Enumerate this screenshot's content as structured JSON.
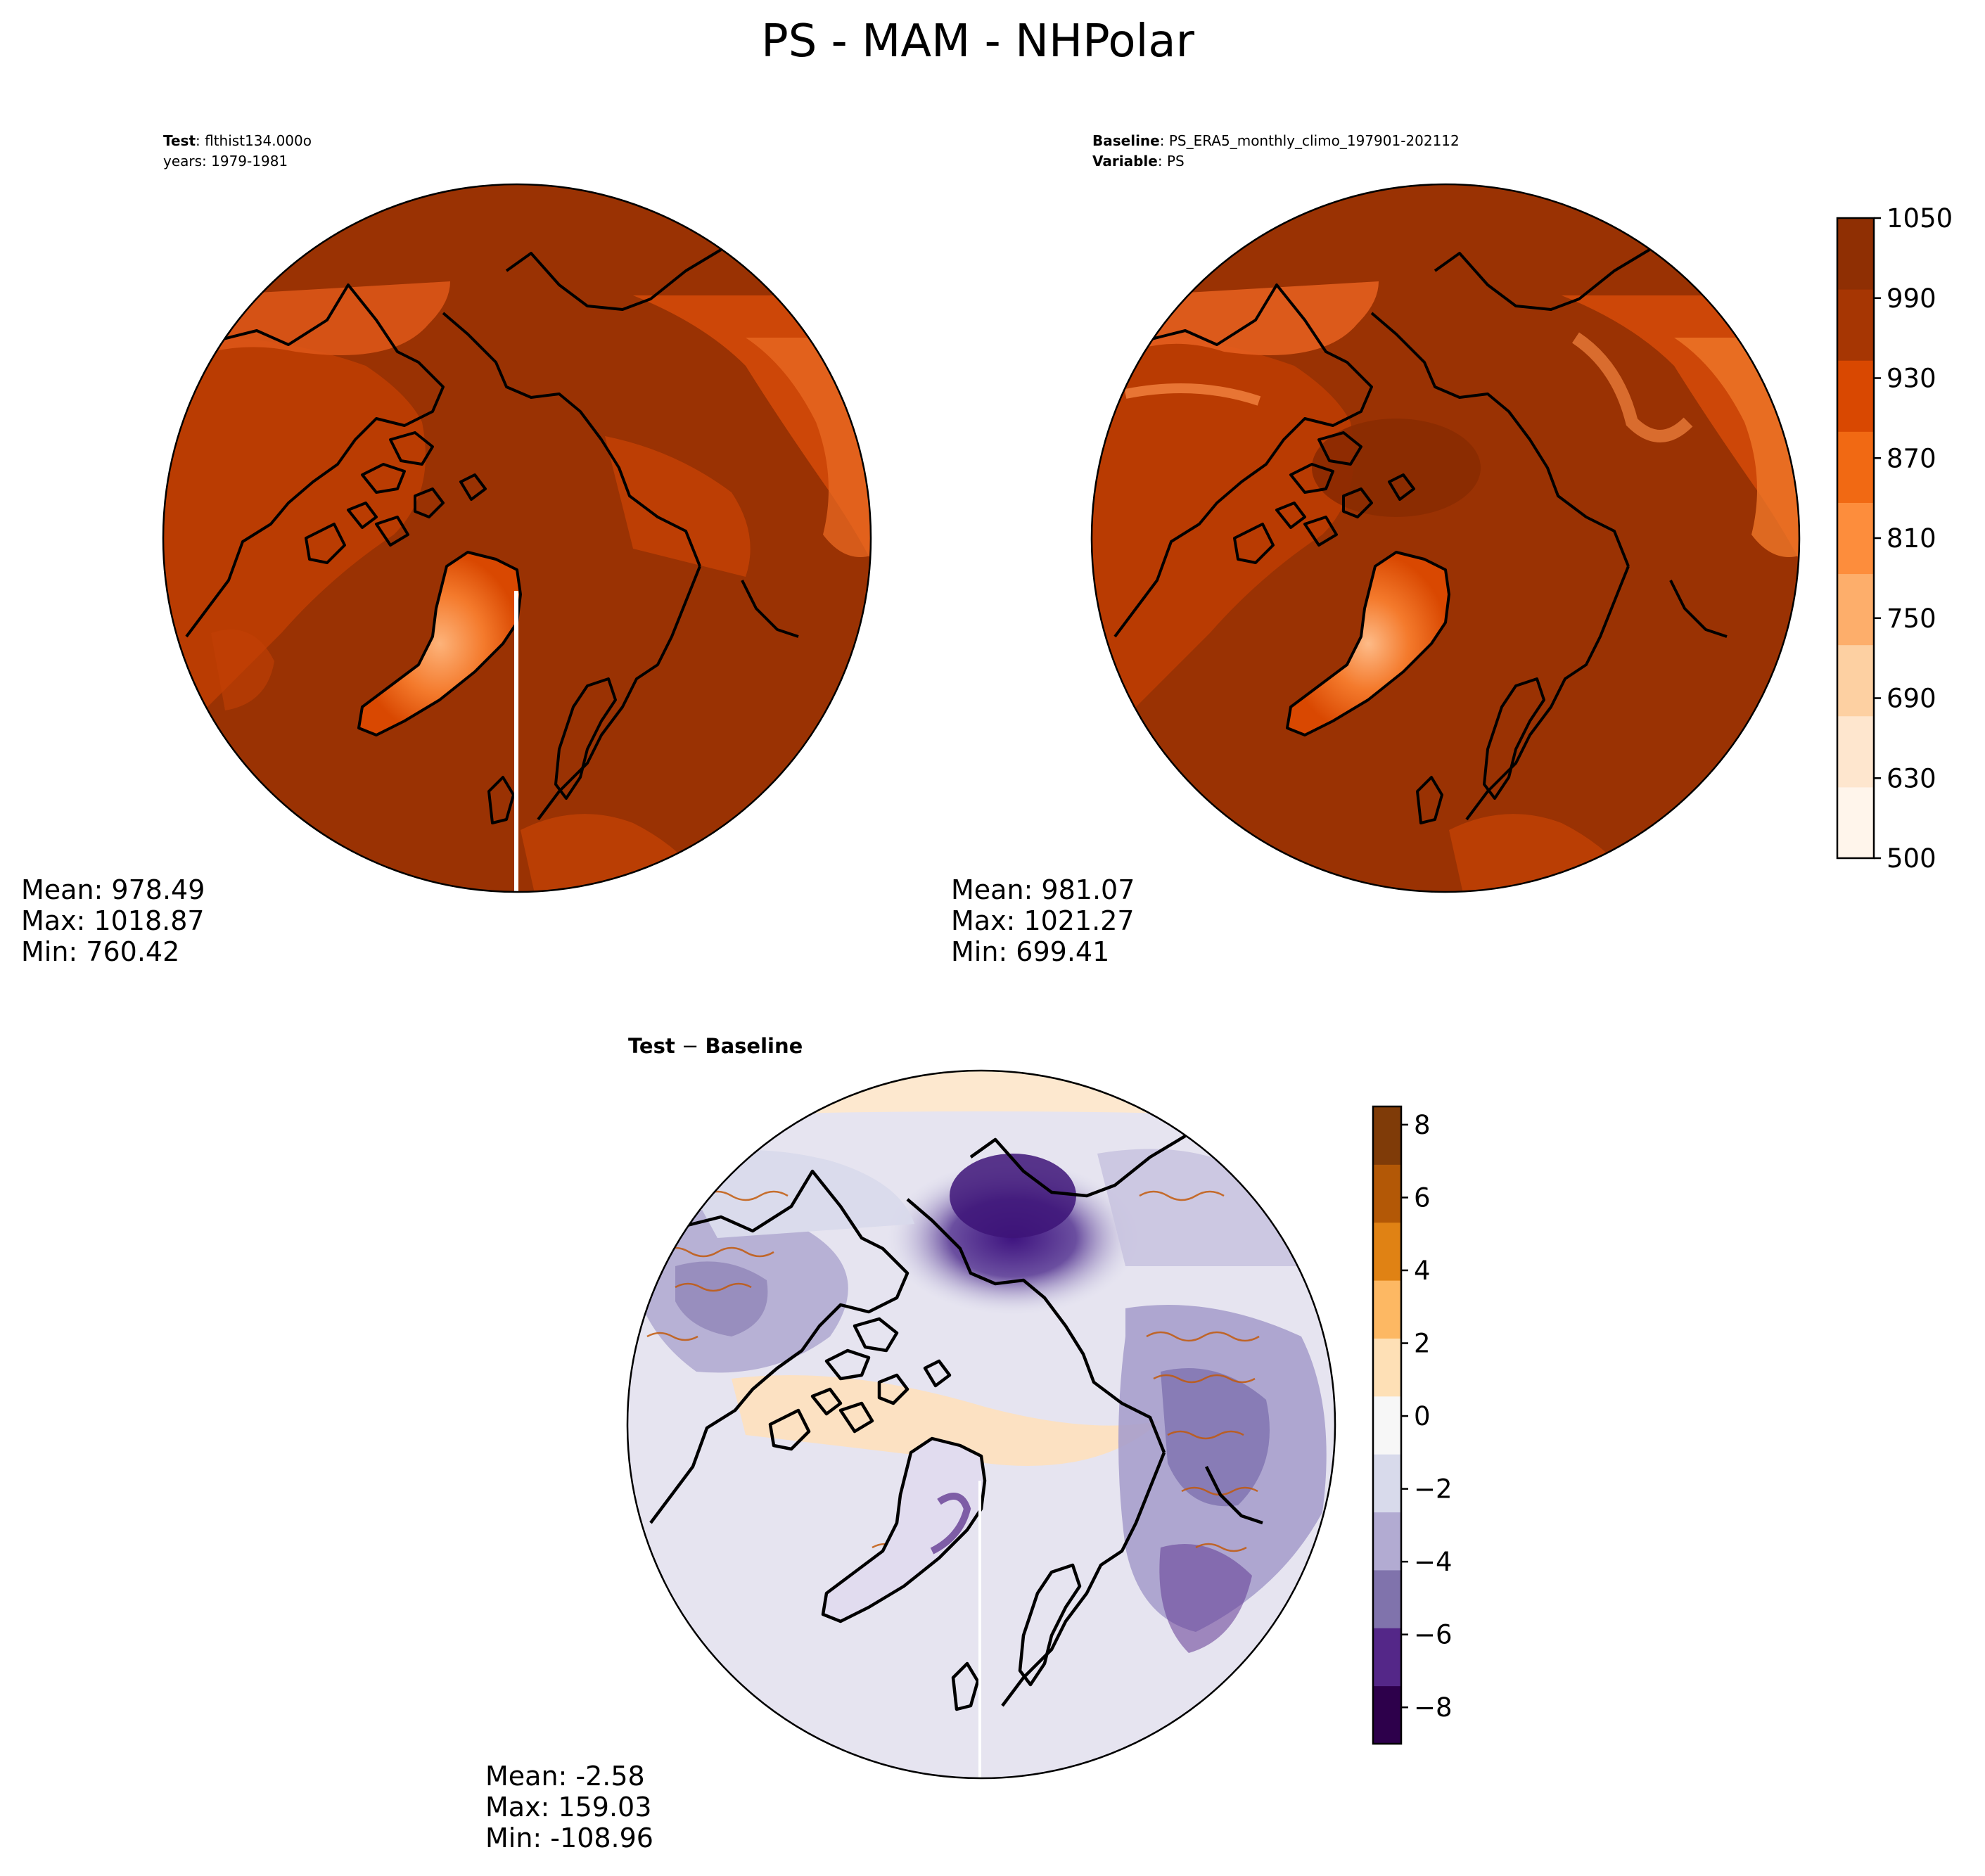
{
  "figure": {
    "title": "PS - MAM - NHPolar"
  },
  "panels": {
    "test": {
      "header_bold": "Test",
      "header_rest": ": flthist134.000o",
      "header_line2": "years: 1979-1981",
      "stats": {
        "mean": "Mean: 978.49",
        "max": "Max: 1018.87",
        "min": "Min: 760.42"
      }
    },
    "baseline": {
      "header_bold": "Baseline",
      "header_rest": ": PS_ERA5_monthly_climo_197901-202112",
      "header2_bold": "Variable",
      "header2_rest": ": PS",
      "stats": {
        "mean": "Mean: 981.07",
        "max": "Max: 1021.27",
        "min": "Min: 699.41"
      }
    },
    "diff": {
      "header_a": "Test",
      "header_op": " − ",
      "header_b": "Baseline",
      "stats": {
        "mean": "Mean: -2.58",
        "max": "Max: 159.03",
        "min": "Min: -108.96"
      }
    }
  },
  "colorbars": {
    "main": {
      "range": [
        500,
        1050
      ],
      "ticks": [
        "500",
        "630",
        "690",
        "750",
        "810",
        "870",
        "930",
        "990",
        "1050"
      ],
      "colors": [
        "#fff5eb",
        "#fee6ce",
        "#fdd0a2",
        "#fdae6b",
        "#fd8d3c",
        "#f16913",
        "#d94801",
        "#a63603",
        "#8f2f03"
      ]
    },
    "diff": {
      "range": [
        -9,
        8.5
      ],
      "ticks": [
        "−8",
        "−6",
        "−4",
        "−2",
        "0",
        "2",
        "4",
        "6",
        "8"
      ],
      "colors": [
        "#2d004b",
        "#542788",
        "#8073ac",
        "#b2abd2",
        "#d8daeb",
        "#f7f7f7",
        "#fee0b6",
        "#fdb863",
        "#e08214",
        "#b35806",
        "#7f3b08"
      ]
    }
  }
}
